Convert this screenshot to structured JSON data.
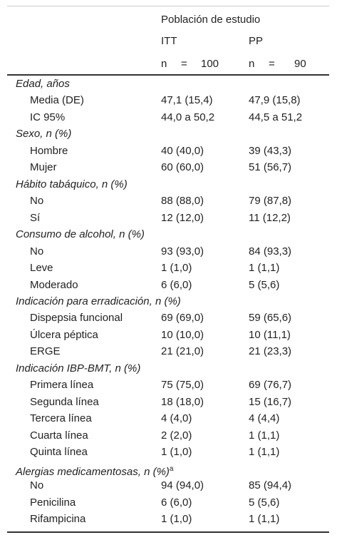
{
  "header": {
    "group": "Población de estudio",
    "columns": [
      "ITT",
      "PP"
    ],
    "n": [
      [
        "n",
        "=",
        "100"
      ],
      [
        "n",
        "=",
        "90"
      ]
    ]
  },
  "sections": [
    {
      "title": "Edad, años",
      "rows": [
        [
          "Media (DE)",
          "47,1 (15,4)",
          "47,9 (15,8)"
        ],
        [
          "IC 95%",
          "44,0 a 50,2",
          "44,5 a 51,2"
        ]
      ]
    },
    {
      "title": "Sexo, n (%)",
      "rows": [
        [
          "Hombre",
          "40 (40,0)",
          "39 (43,3)"
        ],
        [
          "Mujer",
          "60 (60,0)",
          "51 (56,7)"
        ]
      ]
    },
    {
      "title": "Hábito tabáquico, n (%)",
      "rows": [
        [
          "No",
          "88 (88,0)",
          "79 (87,8)"
        ],
        [
          "Sí",
          "12 (12,0)",
          "11 (12,2)"
        ]
      ]
    },
    {
      "title": "Consumo de alcohol, n (%)",
      "rows": [
        [
          "No",
          "93 (93,0)",
          "84 (93,3)"
        ],
        [
          "Leve",
          "1 (1,0)",
          "1 (1,1)"
        ],
        [
          "Moderado",
          "6 (6,0)",
          "5 (5,6)"
        ]
      ]
    },
    {
      "title": "Indicación para erradicación, n (%)",
      "rows": [
        [
          "Dispepsia funcional",
          "69 (69,0)",
          "59 (65,6)"
        ],
        [
          "Úlcera péptica",
          "10 (10,0)",
          "10 (11,1)"
        ],
        [
          "ERGE",
          "21 (21,0)",
          "21 (23,3)"
        ]
      ]
    },
    {
      "title": "Indicación IBP-BMT, n (%)",
      "rows": [
        [
          "Primera línea",
          "75 (75,0)",
          "69 (76,7)"
        ],
        [
          "Segunda línea",
          "18 (18,0)",
          "15 (16,7)"
        ],
        [
          "Tercera línea",
          "4 (4,0)",
          "4 (4,4)"
        ],
        [
          "Cuarta línea",
          "2 (2,0)",
          "1 (1,1)"
        ],
        [
          "Quinta línea",
          "1 (1,0)",
          "1 (1,1)"
        ]
      ]
    },
    {
      "title": "Alergias medicamentosas, n (%)",
      "sup": "a",
      "rows": [
        [
          "No",
          "94 (94,0)",
          "85 (94,4)"
        ],
        [
          "Penicilina",
          "6 (6,0)",
          "5 (5,6)"
        ],
        [
          "Rifampicina",
          "1 (1,0)",
          "1 (1,1)"
        ]
      ]
    }
  ]
}
